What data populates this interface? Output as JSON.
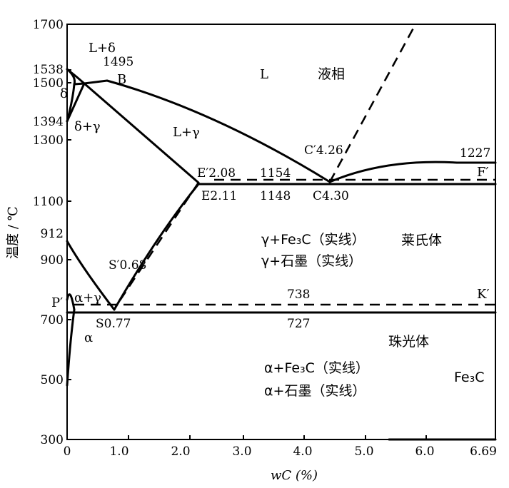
{
  "y_axis": {
    "label": "温度 / ℃",
    "ticks": [
      "1700",
      "1538",
      "1500",
      "1394",
      "1300",
      "1100",
      "912",
      "900",
      "700",
      "500",
      "300"
    ]
  },
  "x_axis": {
    "label": "wC (%)",
    "ticks": [
      "0",
      "1.0",
      "2.0",
      "3.0",
      "4.0",
      "5.0",
      "6.0",
      "6.69"
    ]
  },
  "labels": {
    "liquid_cn": "液相",
    "liquid": "L",
    "l_delta": "L+δ",
    "t1495": "1495",
    "point_b": "B",
    "delta": "δ",
    "delta_gamma": "δ+γ",
    "l_gamma": "L+γ",
    "e_prime": "E′2.08",
    "t1154": "1154",
    "c_prime": "C′4.26",
    "t1227": "1227",
    "f_prime": "F′",
    "e": "E2.11",
    "t1148": "1148",
    "c": "C4.30",
    "gamma_fe3c": "γ+Fe₃C（实线）",
    "gamma_graphite": "γ+石墨（实线）",
    "ledeburite": "莱氏体",
    "s_prime": "S′0.68",
    "alpha_gamma": "α+γ",
    "p_prime": "P′",
    "t738": "738",
    "k_prime": "K′",
    "s": "S0.77",
    "t727": "727",
    "alpha": "α",
    "pearlite": "珠光体",
    "alpha_fe3c": "α+Fe₃C（实线）",
    "alpha_graphite": "α+石墨（实线）",
    "fe3c": "Fe₃C"
  }
}
